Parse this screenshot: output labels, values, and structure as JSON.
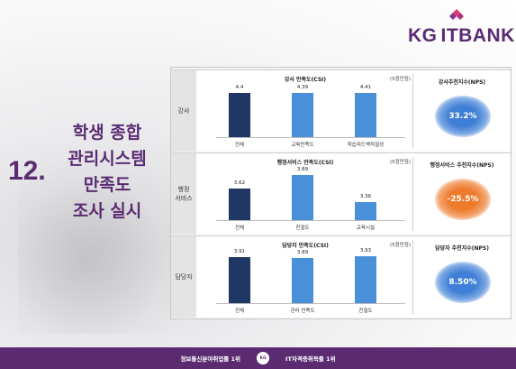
{
  "logo": {
    "kg": "KG",
    "it": "ITBANK"
  },
  "slide": {
    "number": "12.",
    "title_lines": [
      "학생 종합",
      "관리시스템",
      "만족도",
      "조사 실시"
    ]
  },
  "rows": [
    {
      "label": "강사",
      "chart_title": "강사 만족도(CSI)",
      "unit": "(5점만점)",
      "nps_title": "강사추천지수(NPS)",
      "nps_value": "33.2%",
      "nps_color": "#3f7fd6"
    },
    {
      "label": "행정\n서비스",
      "chart_title": "행정서비스 만족도(CSI)",
      "unit": "(5점만점)",
      "nps_title": "행정서비스 추천지수(NPS)",
      "nps_value": "-25.5%",
      "nps_color": "#ee7a2c"
    },
    {
      "label": "담당자",
      "chart_title": "담당자 만족도(CSI)",
      "unit": "(5점만점)",
      "nps_title": "담당자 추천지수(NPS)",
      "nps_value": "8.50%",
      "nps_color": "#3f7fd6"
    }
  ],
  "chart_data": [
    {
      "type": "bar",
      "title": "강사 만족도(CSI)",
      "categories": [
        "전체",
        "교육만족도",
        "학습피드백적절성"
      ],
      "values": [
        4.4,
        4.39,
        4.41
      ],
      "ylim": [
        3.0,
        4.6
      ],
      "colors": [
        "#1f3763",
        "#4a90d9",
        "#4a90d9"
      ]
    },
    {
      "type": "bar",
      "title": "행정서비스 만족도(CSI)",
      "categories": [
        "전체",
        "친절도",
        "교육시설"
      ],
      "values": [
        3.62,
        3.89,
        3.36
      ],
      "ylim": [
        3.0,
        4.0
      ],
      "colors": [
        "#1f3763",
        "#4a90d9",
        "#4a90d9"
      ]
    },
    {
      "type": "bar",
      "title": "담당자 만족도(CSI)",
      "categories": [
        "전체",
        "관리 만족도",
        "친절도"
      ],
      "values": [
        3.91,
        3.89,
        3.93
      ],
      "ylim": [
        3.0,
        4.0
      ],
      "colors": [
        "#1f3763",
        "#4a90d9",
        "#4a90d9"
      ]
    }
  ],
  "footer": {
    "left": "정보통신분야취업률 1위",
    "badge": "KG",
    "right": "IT자격증취득률 1위"
  }
}
